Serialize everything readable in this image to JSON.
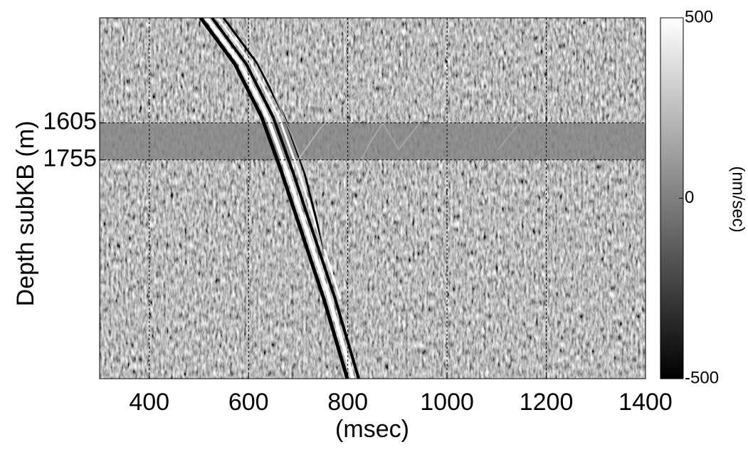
{
  "chart_data": {
    "type": "image",
    "x_label": "(msec)",
    "y_label": "Depth subKB (m)",
    "xlim": [
      300,
      1400
    ],
    "xticks": [
      400,
      600,
      800,
      1000,
      1200,
      1400
    ],
    "ylim": [
      1180,
      2640
    ],
    "yticks": [
      1605,
      1755
    ],
    "y_inverted": true,
    "grid": true,
    "colorbar": {
      "label": "(nm/sec)",
      "lim": [
        -500,
        500
      ],
      "ticks": [
        -500,
        0,
        500
      ],
      "colormap": [
        "#000000",
        "#ffffff"
      ]
    }
  }
}
